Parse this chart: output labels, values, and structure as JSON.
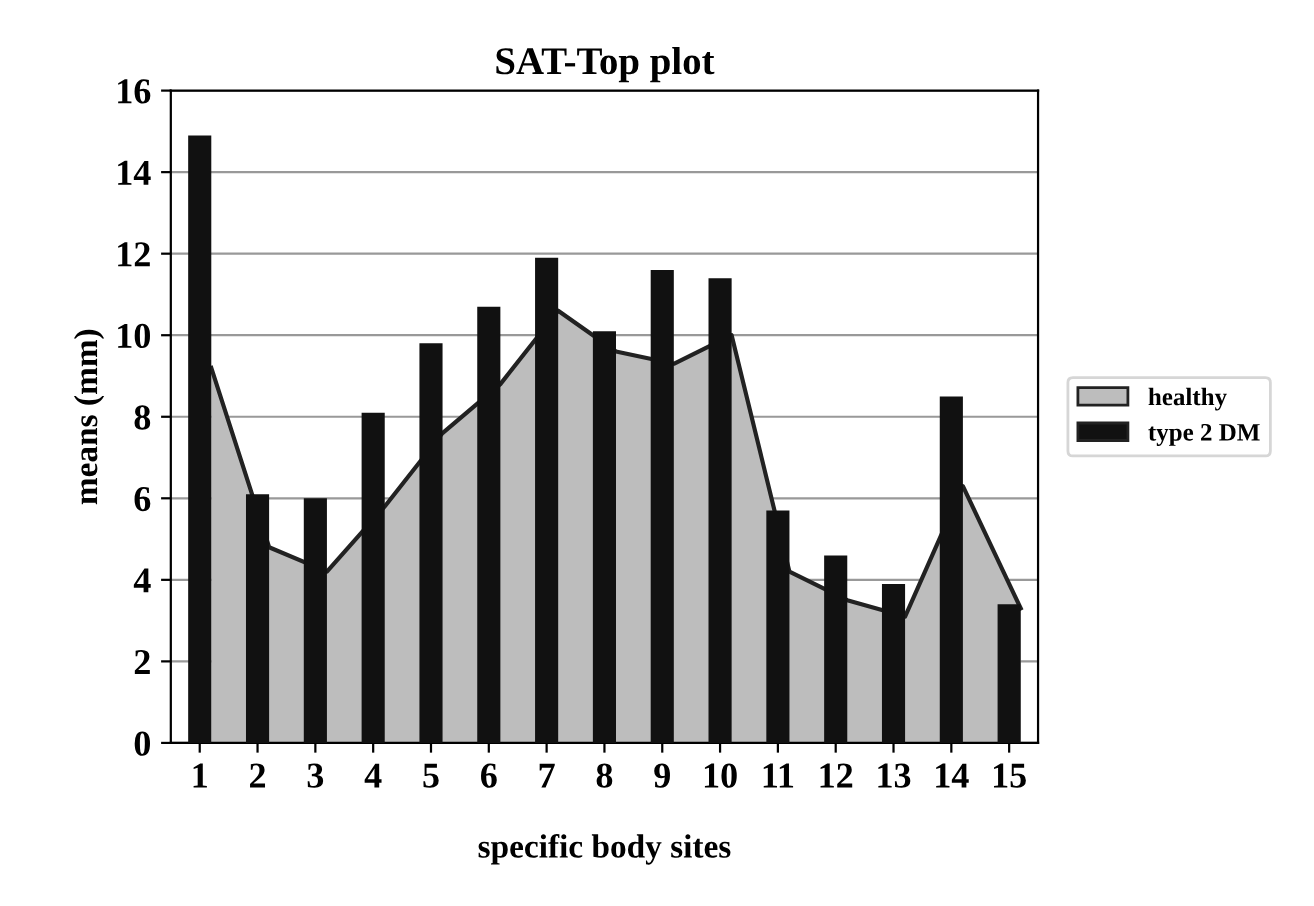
{
  "chart_data": {
    "type": "bar",
    "title": "SAT-Top plot",
    "xlabel": "specific body sites",
    "ylabel": "means (mm)",
    "categories": [
      "1",
      "2",
      "3",
      "4",
      "5",
      "6",
      "7",
      "8",
      "9",
      "10",
      "11",
      "12",
      "13",
      "14",
      "15"
    ],
    "series": [
      {
        "name": "healthy",
        "type": "area",
        "color": "#bdbdbd",
        "values": [
          9.2,
          4.8,
          4.2,
          5.8,
          7.6,
          8.8,
          10.6,
          9.6,
          9.3,
          10.0,
          4.2,
          3.5,
          3.1,
          6.3,
          3.3
        ]
      },
      {
        "name": "type 2 DM",
        "color": "#111111",
        "values": [
          14.9,
          6.1,
          6.0,
          8.1,
          9.8,
          10.7,
          11.9,
          10.1,
          11.6,
          11.4,
          5.7,
          4.6,
          3.9,
          8.5,
          3.4
        ]
      }
    ],
    "ylim": [
      0,
      16
    ],
    "yticks": [
      0,
      2,
      4,
      6,
      8,
      10,
      12,
      14,
      16
    ],
    "grid": "y",
    "legend": "right"
  }
}
